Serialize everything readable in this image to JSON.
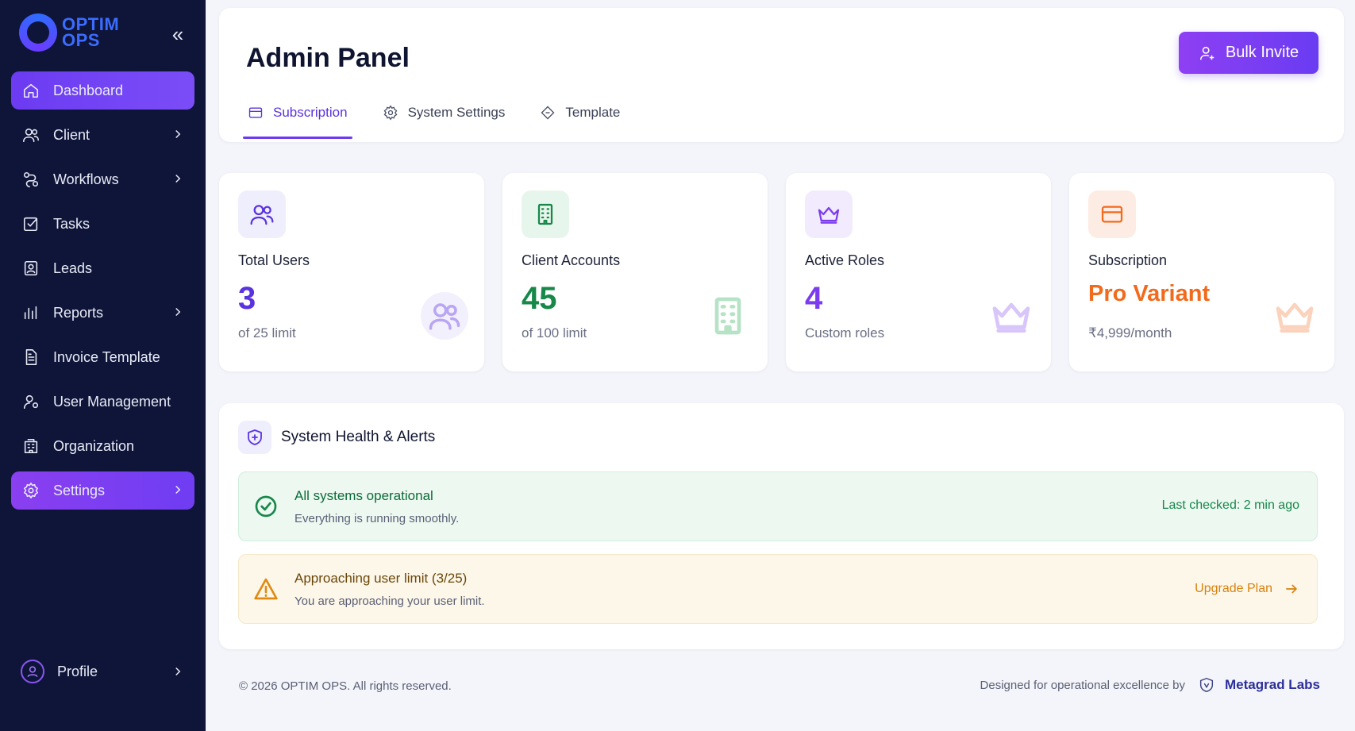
{
  "brand": {
    "line1": "OPTIM",
    "line2": "OPS"
  },
  "sidebar": {
    "items": [
      {
        "label": "Dashboard",
        "icon": "home-icon"
      },
      {
        "label": "Client",
        "icon": "users-icon"
      },
      {
        "label": "Workflows",
        "icon": "workflow-icon"
      },
      {
        "label": "Tasks",
        "icon": "task-check-icon"
      },
      {
        "label": "Leads",
        "icon": "contact-card-icon"
      },
      {
        "label": "Reports",
        "icon": "bar-chart-icon"
      },
      {
        "label": "Invoice Template",
        "icon": "document-icon"
      },
      {
        "label": "User Management",
        "icon": "user-gear-icon"
      },
      {
        "label": "Organization",
        "icon": "building-icon"
      },
      {
        "label": "Settings",
        "icon": "gear-icon"
      }
    ],
    "profile": {
      "label": "Profile"
    }
  },
  "header": {
    "title": "Admin Panel",
    "bulk_invite": "Bulk Invite",
    "tabs": [
      {
        "label": "Subscription",
        "icon": "card-icon"
      },
      {
        "label": "System Settings",
        "icon": "gear-icon"
      },
      {
        "label": "Template",
        "icon": "diamond-icon"
      }
    ]
  },
  "stats": [
    {
      "label": "Total Users",
      "value": "3",
      "sub": "of 25 limit",
      "color": "#5a33e0"
    },
    {
      "label": "Client Accounts",
      "value": "45",
      "sub": "of 100 limit",
      "color": "#17884a"
    },
    {
      "label": "Active Roles",
      "value": "4",
      "sub": "Custom roles",
      "color": "#7b3bef"
    },
    {
      "label": "Subscription",
      "value": "Pro Variant",
      "sub": "₹4,999/month",
      "color": "#f26a1b"
    }
  ],
  "health": {
    "title": "System Health & Alerts",
    "ok": {
      "title": "All systems operational",
      "desc": "Everything is running smoothly.",
      "right": "Last checked: 2 min ago"
    },
    "warn": {
      "title": "Approaching user limit (3/25)",
      "desc": "You are approaching your user limit.",
      "action": "Upgrade Plan"
    }
  },
  "footer": {
    "copyright": "© 2026 OPTIM OPS. All rights reserved.",
    "designed_by": "Designed for operational excellence by",
    "company": "Metagrad Labs"
  }
}
